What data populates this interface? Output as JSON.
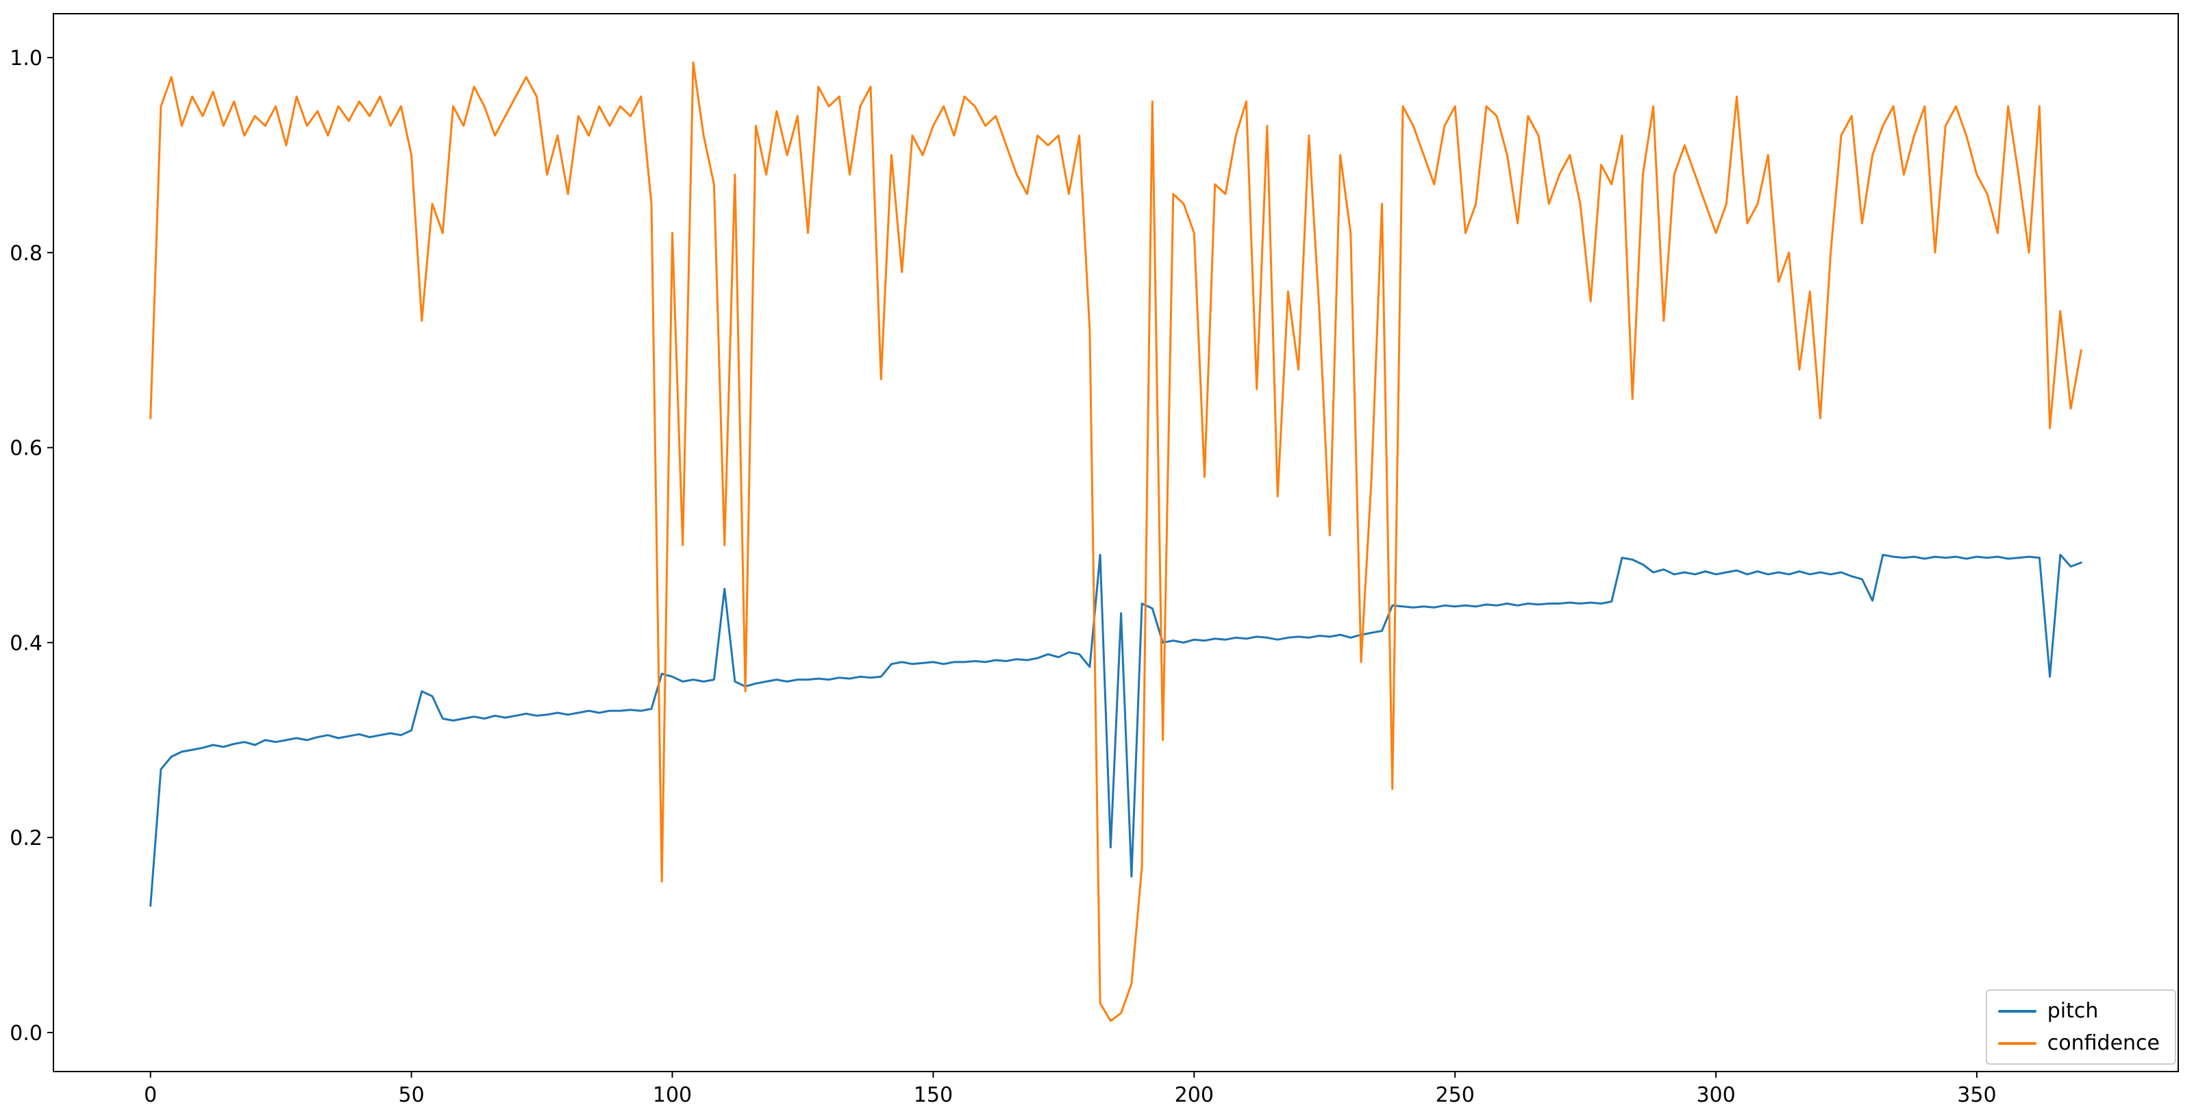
{
  "figure": {
    "background": "#ffffff",
    "frame_color": "#000000"
  },
  "chart_data": {
    "type": "line",
    "title": "",
    "xlabel": "",
    "ylabel": "",
    "grid": false,
    "legend_position": "lower right",
    "xlim": [
      -18.6,
      388.6
    ],
    "ylim": [
      -0.04,
      1.045
    ],
    "x_ticks": [
      0,
      50,
      100,
      150,
      200,
      250,
      300,
      350
    ],
    "x_tick_labels": [
      "0",
      "50",
      "100",
      "150",
      "200",
      "250",
      "300",
      "350"
    ],
    "y_ticks": [
      0.0,
      0.2,
      0.4,
      0.6,
      0.8,
      1.0
    ],
    "y_tick_labels": [
      "0.0",
      "0.2",
      "0.4",
      "0.6",
      "0.8",
      "1.0"
    ],
    "x": [
      0,
      2,
      4,
      6,
      8,
      10,
      12,
      14,
      16,
      18,
      20,
      22,
      24,
      26,
      28,
      30,
      32,
      34,
      36,
      38,
      40,
      42,
      44,
      46,
      48,
      50,
      52,
      54,
      56,
      58,
      60,
      62,
      64,
      66,
      68,
      70,
      72,
      74,
      76,
      78,
      80,
      82,
      84,
      86,
      88,
      90,
      92,
      94,
      96,
      98,
      100,
      102,
      104,
      106,
      108,
      110,
      112,
      114,
      116,
      118,
      120,
      122,
      124,
      126,
      128,
      130,
      132,
      134,
      136,
      138,
      140,
      142,
      144,
      146,
      148,
      150,
      152,
      154,
      156,
      158,
      160,
      162,
      164,
      166,
      168,
      170,
      172,
      174,
      176,
      178,
      180,
      182,
      184,
      186,
      188,
      190,
      192,
      194,
      196,
      198,
      200,
      202,
      204,
      206,
      208,
      210,
      212,
      214,
      216,
      218,
      220,
      222,
      224,
      226,
      228,
      230,
      232,
      234,
      236,
      238,
      240,
      242,
      244,
      246,
      248,
      250,
      252,
      254,
      256,
      258,
      260,
      262,
      264,
      266,
      268,
      270,
      272,
      274,
      276,
      278,
      280,
      282,
      284,
      286,
      288,
      290,
      292,
      294,
      296,
      298,
      300,
      302,
      304,
      306,
      308,
      310,
      312,
      314,
      316,
      318,
      320,
      322,
      324,
      326,
      328,
      330,
      332,
      334,
      336,
      338,
      340,
      342,
      344,
      346,
      348,
      350,
      352,
      354,
      356,
      358,
      360,
      362,
      364,
      366,
      368,
      370
    ],
    "series": [
      {
        "name": "pitch",
        "color": "#1f77b4",
        "values": [
          0.13,
          0.27,
          0.283,
          0.288,
          0.29,
          0.292,
          0.295,
          0.293,
          0.296,
          0.298,
          0.295,
          0.3,
          0.298,
          0.3,
          0.302,
          0.3,
          0.303,
          0.305,
          0.302,
          0.304,
          0.306,
          0.303,
          0.305,
          0.307,
          0.305,
          0.31,
          0.35,
          0.345,
          0.322,
          0.32,
          0.322,
          0.324,
          0.322,
          0.325,
          0.323,
          0.325,
          0.327,
          0.325,
          0.326,
          0.328,
          0.326,
          0.328,
          0.33,
          0.328,
          0.33,
          0.33,
          0.331,
          0.33,
          0.332,
          0.368,
          0.365,
          0.36,
          0.362,
          0.36,
          0.362,
          0.455,
          0.36,
          0.355,
          0.358,
          0.36,
          0.362,
          0.36,
          0.362,
          0.362,
          0.363,
          0.362,
          0.364,
          0.363,
          0.365,
          0.364,
          0.365,
          0.378,
          0.38,
          0.378,
          0.379,
          0.38,
          0.378,
          0.38,
          0.38,
          0.381,
          0.38,
          0.382,
          0.381,
          0.383,
          0.382,
          0.384,
          0.388,
          0.385,
          0.39,
          0.388,
          0.375,
          0.49,
          0.19,
          0.43,
          0.16,
          0.44,
          0.435,
          0.4,
          0.402,
          0.4,
          0.403,
          0.402,
          0.404,
          0.403,
          0.405,
          0.404,
          0.406,
          0.405,
          0.403,
          0.405,
          0.406,
          0.405,
          0.407,
          0.406,
          0.408,
          0.405,
          0.408,
          0.41,
          0.412,
          0.438,
          0.437,
          0.436,
          0.437,
          0.436,
          0.438,
          0.437,
          0.438,
          0.437,
          0.439,
          0.438,
          0.44,
          0.438,
          0.44,
          0.439,
          0.44,
          0.44,
          0.441,
          0.44,
          0.441,
          0.44,
          0.442,
          0.487,
          0.485,
          0.48,
          0.472,
          0.475,
          0.47,
          0.472,
          0.47,
          0.473,
          0.47,
          0.472,
          0.474,
          0.47,
          0.473,
          0.47,
          0.472,
          0.47,
          0.473,
          0.47,
          0.472,
          0.47,
          0.472,
          0.468,
          0.465,
          0.443,
          0.49,
          0.488,
          0.487,
          0.488,
          0.486,
          0.488,
          0.487,
          0.488,
          0.486,
          0.488,
          0.487,
          0.488,
          0.486,
          0.487,
          0.488,
          0.487,
          0.365,
          0.49,
          0.478,
          0.482
        ]
      },
      {
        "name": "confidence",
        "color": "#ff7f0e",
        "values": [
          0.63,
          0.95,
          0.98,
          0.93,
          0.96,
          0.94,
          0.965,
          0.93,
          0.955,
          0.92,
          0.94,
          0.93,
          0.95,
          0.91,
          0.96,
          0.93,
          0.945,
          0.92,
          0.95,
          0.935,
          0.955,
          0.94,
          0.96,
          0.93,
          0.95,
          0.9,
          0.73,
          0.85,
          0.82,
          0.95,
          0.93,
          0.97,
          0.95,
          0.92,
          0.94,
          0.96,
          0.98,
          0.96,
          0.88,
          0.92,
          0.86,
          0.94,
          0.92,
          0.95,
          0.93,
          0.95,
          0.94,
          0.96,
          0.85,
          0.155,
          0.82,
          0.5,
          0.995,
          0.92,
          0.87,
          0.5,
          0.88,
          0.35,
          0.93,
          0.88,
          0.945,
          0.9,
          0.94,
          0.82,
          0.97,
          0.95,
          0.96,
          0.88,
          0.95,
          0.97,
          0.67,
          0.9,
          0.78,
          0.92,
          0.9,
          0.93,
          0.95,
          0.92,
          0.96,
          0.95,
          0.93,
          0.94,
          0.91,
          0.88,
          0.86,
          0.92,
          0.91,
          0.92,
          0.86,
          0.92,
          0.72,
          0.03,
          0.012,
          0.02,
          0.05,
          0.17,
          0.955,
          0.3,
          0.86,
          0.85,
          0.82,
          0.57,
          0.87,
          0.86,
          0.92,
          0.955,
          0.66,
          0.93,
          0.55,
          0.76,
          0.68,
          0.92,
          0.74,
          0.51,
          0.9,
          0.82,
          0.38,
          0.57,
          0.85,
          0.25,
          0.95,
          0.93,
          0.9,
          0.87,
          0.93,
          0.95,
          0.82,
          0.85,
          0.95,
          0.94,
          0.9,
          0.83,
          0.94,
          0.92,
          0.85,
          0.88,
          0.9,
          0.85,
          0.75,
          0.89,
          0.87,
          0.92,
          0.65,
          0.88,
          0.95,
          0.73,
          0.88,
          0.91,
          0.88,
          0.85,
          0.82,
          0.85,
          0.96,
          0.83,
          0.85,
          0.9,
          0.77,
          0.8,
          0.68,
          0.76,
          0.63,
          0.8,
          0.92,
          0.94,
          0.83,
          0.9,
          0.93,
          0.95,
          0.88,
          0.92,
          0.95,
          0.8,
          0.93,
          0.95,
          0.92,
          0.88,
          0.86,
          0.82,
          0.95,
          0.88,
          0.8,
          0.95,
          0.62,
          0.74,
          0.64,
          0.7
        ]
      }
    ]
  },
  "legend": {
    "items": [
      {
        "label": "pitch"
      },
      {
        "label": "confidence"
      }
    ]
  }
}
